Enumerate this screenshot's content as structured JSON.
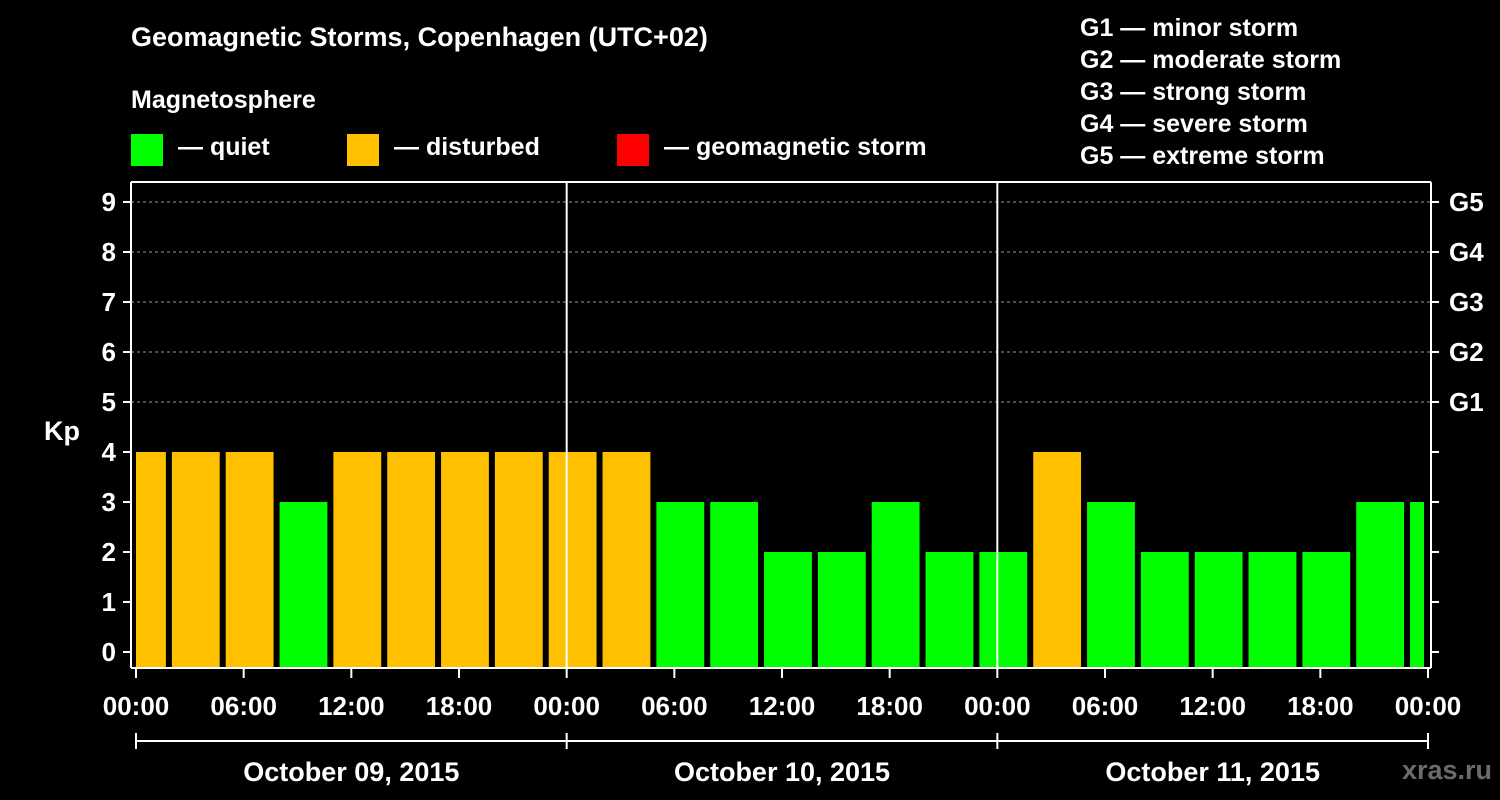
{
  "header": {
    "title": "Geomagnetic Storms, Copenhagen (UTC+02)",
    "magnetosphere_label": "Magnetosphere"
  },
  "legend": {
    "items": [
      {
        "label": "— quiet",
        "color": "#00ff00"
      },
      {
        "label": "— disturbed",
        "color": "#ffc000"
      },
      {
        "label": "— geomagnetic storm",
        "color": "#ff0000"
      }
    ]
  },
  "storm_scale": [
    "G1 — minor storm",
    "G2 — moderate storm",
    "G3 — strong storm",
    "G4 — severe storm",
    "G5 — extreme storm"
  ],
  "watermark": "xras.ru",
  "chart_data": {
    "type": "bar",
    "ylabel": "Kp",
    "ylim": [
      0,
      9
    ],
    "yticks": [
      "0",
      "1",
      "2",
      "3",
      "4",
      "5",
      "6",
      "7",
      "8",
      "9"
    ],
    "right_axis_labels": [
      {
        "kp": 5,
        "label": "G1"
      },
      {
        "kp": 6,
        "label": "G2"
      },
      {
        "kp": 7,
        "label": "G3"
      },
      {
        "kp": 8,
        "label": "G4"
      },
      {
        "kp": 9,
        "label": "G5"
      }
    ],
    "xtick_labels": [
      "00:00",
      "06:00",
      "12:00",
      "18:00",
      "00:00",
      "06:00",
      "12:00",
      "18:00",
      "00:00",
      "06:00",
      "12:00",
      "18:00",
      "00:00"
    ],
    "days": [
      "October 09, 2015",
      "October 10, 2015",
      "October 11, 2015"
    ],
    "grid": true,
    "bar_interval_hours": 3,
    "bars": [
      {
        "start_hour": 0,
        "kp": 4,
        "status": "disturbed"
      },
      {
        "start_hour": 2,
        "kp": 4,
        "status": "disturbed"
      },
      {
        "start_hour": 5,
        "kp": 4,
        "status": "disturbed"
      },
      {
        "start_hour": 8,
        "kp": 3,
        "status": "quiet"
      },
      {
        "start_hour": 11,
        "kp": 4,
        "status": "disturbed"
      },
      {
        "start_hour": 14,
        "kp": 4,
        "status": "disturbed"
      },
      {
        "start_hour": 17,
        "kp": 4,
        "status": "disturbed"
      },
      {
        "start_hour": 20,
        "kp": 4,
        "status": "disturbed"
      },
      {
        "start_hour": 23,
        "kp": 4,
        "status": "disturbed"
      },
      {
        "start_hour": 26,
        "kp": 4,
        "status": "disturbed"
      },
      {
        "start_hour": 29,
        "kp": 3,
        "status": "quiet"
      },
      {
        "start_hour": 32,
        "kp": 3,
        "status": "quiet"
      },
      {
        "start_hour": 35,
        "kp": 2,
        "status": "quiet"
      },
      {
        "start_hour": 38,
        "kp": 2,
        "status": "quiet"
      },
      {
        "start_hour": 41,
        "kp": 3,
        "status": "quiet"
      },
      {
        "start_hour": 44,
        "kp": 2,
        "status": "quiet"
      },
      {
        "start_hour": 47,
        "kp": 2,
        "status": "quiet"
      },
      {
        "start_hour": 50,
        "kp": 4,
        "status": "disturbed"
      },
      {
        "start_hour": 53,
        "kp": 3,
        "status": "quiet"
      },
      {
        "start_hour": 56,
        "kp": 2,
        "status": "quiet"
      },
      {
        "start_hour": 59,
        "kp": 2,
        "status": "quiet"
      },
      {
        "start_hour": 62,
        "kp": 2,
        "status": "quiet"
      },
      {
        "start_hour": 65,
        "kp": 2,
        "status": "quiet"
      },
      {
        "start_hour": 68,
        "kp": 3,
        "status": "quiet"
      },
      {
        "start_hour": 71,
        "kp": 3,
        "status": "quiet"
      }
    ]
  }
}
